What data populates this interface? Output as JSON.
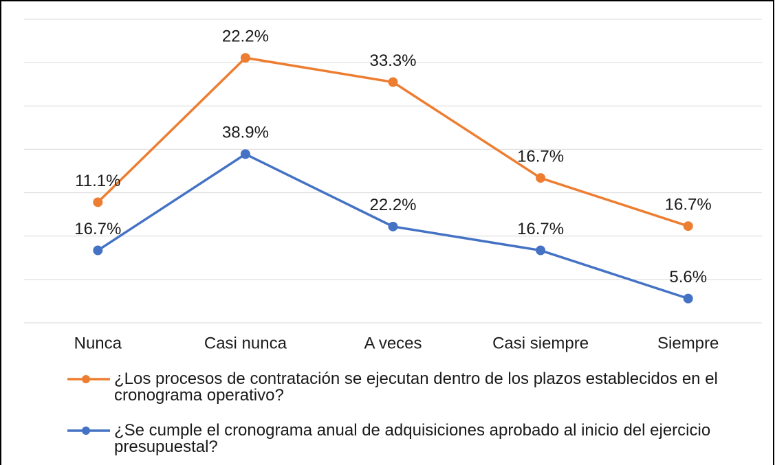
{
  "chart_data": {
    "type": "line",
    "stacked": true,
    "categories": [
      "Nunca",
      "Casi nunca",
      "A veces",
      "Casi siempre",
      "Siempre"
    ],
    "series": [
      {
        "name": "¿Los procesos de contratación se ejecutan dentro de los plazos establecidos en el cronograma operativo?",
        "color": "#ED7D31",
        "values": [
          11.1,
          22.2,
          33.3,
          16.7,
          16.7
        ],
        "value_labels": [
          "11.1%",
          "22.2%",
          "33.3%",
          "16.7%",
          "16.7%"
        ]
      },
      {
        "name": "¿Se cumple el cronograma anual de adquisiciones aprobado al inicio del ejercicio presupuestal?",
        "color": "#4472C4",
        "values": [
          16.7,
          38.9,
          22.2,
          16.7,
          5.6
        ],
        "value_labels": [
          "16.7%",
          "38.9%",
          "22.2%",
          "16.7%",
          "5.6%"
        ]
      }
    ],
    "ylim": [
      0,
      70
    ],
    "yticks": [
      0,
      10,
      20,
      30,
      40,
      50,
      60,
      70
    ],
    "grid": true,
    "legend": "bottom"
  }
}
